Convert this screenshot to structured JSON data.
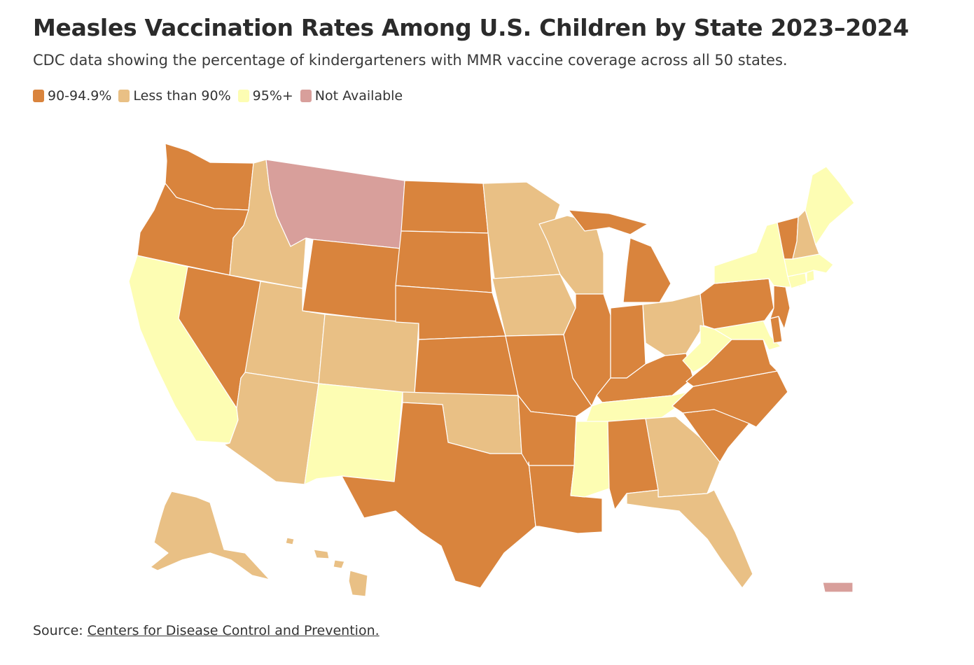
{
  "title": "Measles Vaccination Rates Among U.S. Children by State 2023–2024",
  "subtitle": "CDC data showing the percentage of kindergarteners with MMR vaccine coverage across all 50 states.",
  "legend": [
    {
      "label": "90-94.9%",
      "color": "#d9843d"
    },
    {
      "label": "Less than 90%",
      "color": "#e9c085"
    },
    {
      "label": "95%+",
      "color": "#fdfdb3"
    },
    {
      "label": "Not Available",
      "color": "#d89f9b"
    }
  ],
  "categories": {
    "mid": "#d9843d",
    "low": "#e9c085",
    "high": "#fdfdb3",
    "na": "#d89f9b"
  },
  "map_data": {
    "WA": "mid",
    "OR": "mid",
    "CA": "high",
    "NV": "mid",
    "ID": "low",
    "MT": "na",
    "WY": "mid",
    "UT": "low",
    "AZ": "low",
    "CO": "low",
    "NM": "high",
    "ND": "mid",
    "SD": "mid",
    "NE": "mid",
    "KS": "mid",
    "OK": "low",
    "TX": "mid",
    "MN": "low",
    "IA": "low",
    "MO": "mid",
    "AR": "mid",
    "LA": "mid",
    "WI": "low",
    "IL": "mid",
    "MI": "mid",
    "IN": "mid",
    "OH": "low",
    "KY": "mid",
    "TN": "high",
    "MS": "high",
    "AL": "mid",
    "GA": "low",
    "FL": "low",
    "SC": "mid",
    "NC": "mid",
    "VA": "mid",
    "WV": "high",
    "MD": "high",
    "DE": "mid",
    "PA": "mid",
    "NJ": "mid",
    "NY": "high",
    "CT": "high",
    "RI": "high",
    "MA": "high",
    "VT": "mid",
    "NH": "low",
    "ME": "high",
    "AK": "low",
    "HI": "low",
    "PR": "na"
  },
  "source": {
    "prefix": "Source:",
    "link_text": "Centers for Disease Control and Prevention."
  }
}
